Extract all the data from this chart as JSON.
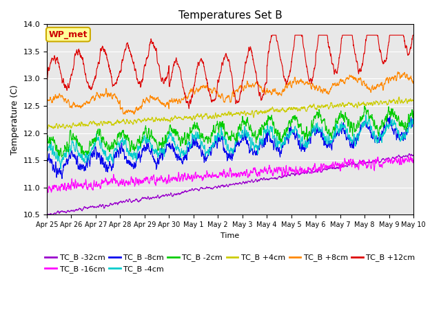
{
  "title": "Temperatures Set B",
  "xlabel": "Time",
  "ylabel": "Temperature (C)",
  "ylim": [
    10.5,
    14.0
  ],
  "yticks": [
    10.5,
    11.0,
    11.5,
    12.0,
    12.5,
    13.0,
    13.5,
    14.0
  ],
  "series": [
    {
      "label": "TC_B -32cm",
      "color": "#9900CC"
    },
    {
      "label": "TC_B -16cm",
      "color": "#FF00FF"
    },
    {
      "label": "TC_B -8cm",
      "color": "#0000EE"
    },
    {
      "label": "TC_B -4cm",
      "color": "#00CCCC"
    },
    {
      "label": "TC_B -2cm",
      "color": "#00CC00"
    },
    {
      "label": "TC_B +4cm",
      "color": "#CCCC00"
    },
    {
      "label": "TC_B +8cm",
      "color": "#FF8800"
    },
    {
      "label": "TC_B +12cm",
      "color": "#DD0000"
    }
  ],
  "annotation_text": "WP_met",
  "annotation_color": "#CC0000",
  "annotation_bg": "#FFFF99",
  "annotation_border": "#CCAA00",
  "n_points": 2160,
  "background_color": "#E8E8E8",
  "grid_color": "#FFFFFF",
  "legend_fontsize": 8,
  "title_fontsize": 11,
  "linewidth": 0.8,
  "tick_labels": [
    "Apr 25",
    "Apr 26",
    "Apr 27",
    "Apr 28",
    "Apr 29",
    "Apr 30",
    "May 1",
    "May 2",
    "May 3",
    "May 4",
    "May 5",
    "May 6",
    "May 7",
    "May 8",
    "May 9",
    "May 10"
  ]
}
